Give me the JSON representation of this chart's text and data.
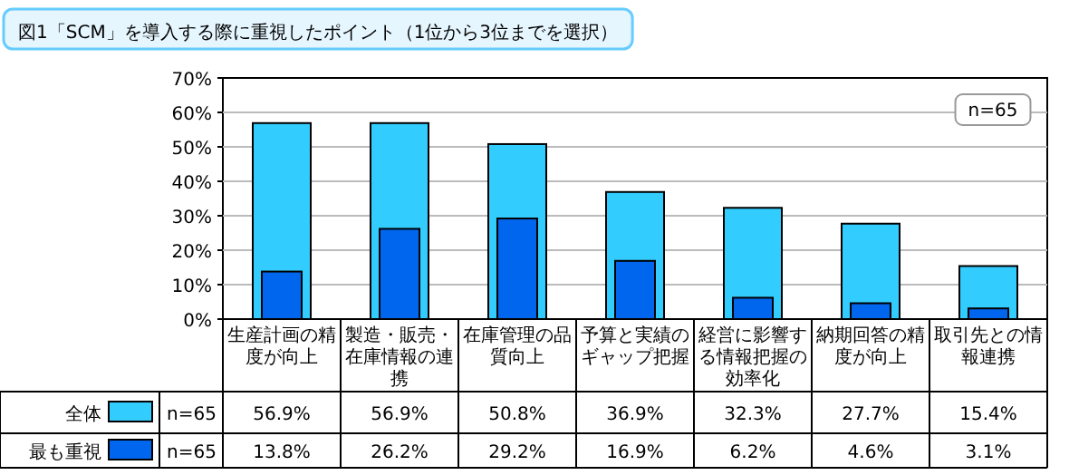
{
  "chart_data": {
    "type": "bar",
    "title": "図1「SCM」を導入する際に重視したポイント（1位から3位までを選択）",
    "categories": [
      "生産計画の精度が向上",
      "製造・販売・在庫情報の連携",
      "在庫管理の品質向上",
      "予算と実績のギャップ把握",
      "経営に影響する情報把握の効率化",
      "納期回答の精度が向上",
      "取引先との情報連携"
    ],
    "series": [
      {
        "name": "全体",
        "color": "#33ccff",
        "values": [
          56.9,
          56.9,
          50.8,
          36.9,
          32.3,
          27.7,
          15.4
        ],
        "value_labels": [
          "56.9%",
          "56.9%",
          "50.8%",
          "36.9%",
          "32.3%",
          "27.7%",
          "15.4%"
        ]
      },
      {
        "name": "最も重視",
        "color": "#0066ee",
        "values": [
          13.8,
          26.2,
          29.2,
          16.9,
          6.2,
          4.6,
          3.1
        ],
        "value_labels": [
          "13.8%",
          "26.2%",
          "29.2%",
          "16.9%",
          "6.2%",
          "4.6%",
          "3.1%"
        ]
      }
    ],
    "ylim": [
      0,
      70
    ],
    "yticks": [
      {
        "value": 0,
        "label": "0%"
      },
      {
        "value": 10,
        "label": "10%"
      },
      {
        "value": 20,
        "label": "20%"
      },
      {
        "value": 30,
        "label": "30%"
      },
      {
        "value": 40,
        "label": "40%"
      },
      {
        "value": 50,
        "label": "50%"
      },
      {
        "value": 60,
        "label": "60%"
      },
      {
        "value": 70,
        "label": "70%"
      }
    ],
    "grid": "y",
    "legend": "bottom",
    "annotations": [
      "n=65",
      "n=65",
      "n=65"
    ]
  }
}
